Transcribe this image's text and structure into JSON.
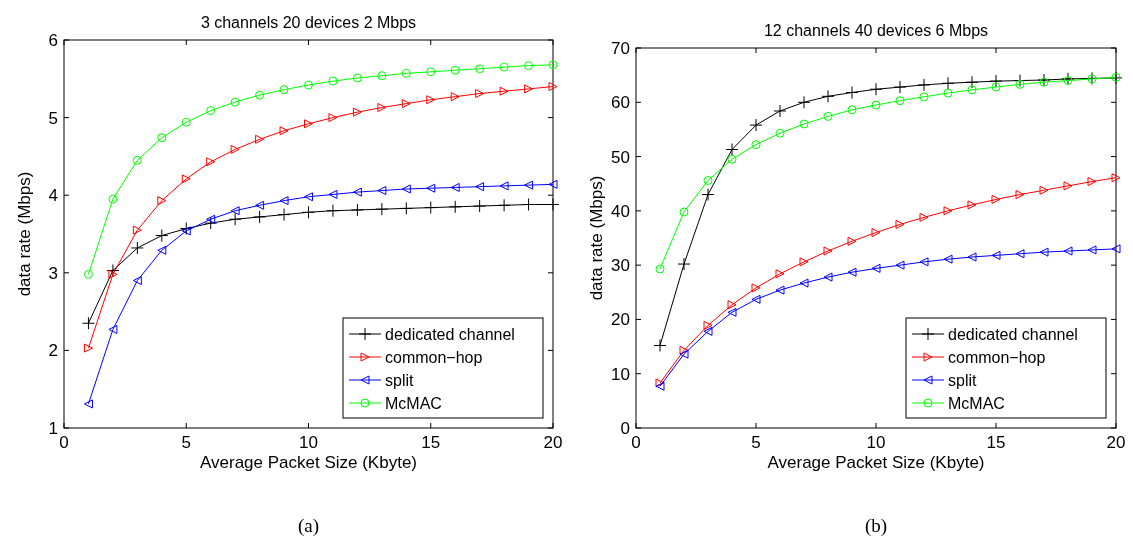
{
  "chart_data": [
    {
      "type": "line",
      "title": "3 channels 20 devices 2 Mbps",
      "xlabel": "Average Packet Size (Kbyte)",
      "ylabel": "data rate (Mbps)",
      "annotations": [
        "(a)"
      ],
      "x": [
        1,
        2,
        3,
        4,
        5,
        6,
        7,
        8,
        9,
        10,
        11,
        12,
        13,
        14,
        15,
        16,
        17,
        18,
        19,
        20
      ],
      "xlim": [
        0,
        20
      ],
      "xticks": [
        0,
        5,
        10,
        15,
        20
      ],
      "ylim": [
        1,
        6
      ],
      "yticks": [
        1,
        2,
        3,
        4,
        5,
        6
      ],
      "grid": false,
      "legend": "bottom right",
      "line_style": "solid",
      "series": [
        {
          "name": "dedicated channel",
          "color": "#000000",
          "marker": "cross",
          "values": [
            2.35,
            3.03,
            3.32,
            3.48,
            3.57,
            3.64,
            3.69,
            3.72,
            3.75,
            3.78,
            3.8,
            3.81,
            3.82,
            3.83,
            3.84,
            3.85,
            3.86,
            3.87,
            3.88,
            3.88
          ]
        },
        {
          "name": "common−hop",
          "color": "#ff0000",
          "marker": "triangle",
          "values": [
            2.03,
            2.98,
            3.55,
            3.93,
            4.21,
            4.43,
            4.59,
            4.72,
            4.83,
            4.92,
            5.0,
            5.07,
            5.13,
            5.18,
            5.23,
            5.27,
            5.31,
            5.34,
            5.37,
            5.4
          ]
        },
        {
          "name": "split",
          "color": "#0000ff",
          "marker": "triangle",
          "values": [
            1.31,
            2.27,
            2.9,
            3.29,
            3.54,
            3.69,
            3.8,
            3.87,
            3.93,
            3.98,
            4.01,
            4.04,
            4.06,
            4.08,
            4.09,
            4.1,
            4.11,
            4.12,
            4.13,
            4.14
          ]
        },
        {
          "name": "McMAC",
          "color": "#00ff00",
          "marker": "circle",
          "values": [
            2.98,
            3.95,
            4.45,
            4.74,
            4.94,
            5.09,
            5.2,
            5.29,
            5.36,
            5.42,
            5.47,
            5.51,
            5.54,
            5.57,
            5.59,
            5.61,
            5.63,
            5.65,
            5.67,
            5.68
          ]
        }
      ]
    },
    {
      "type": "line",
      "title": "12 channels 40 devices 6 Mbps",
      "xlabel": "Average Packet Size (Kbyte)",
      "ylabel": "data rate (Mbps)",
      "annotations": [
        "(b)"
      ],
      "x": [
        1,
        2,
        3,
        4,
        5,
        6,
        7,
        8,
        9,
        10,
        11,
        12,
        13,
        14,
        15,
        16,
        17,
        18,
        19,
        20
      ],
      "xlim": [
        0,
        20
      ],
      "xticks": [
        0,
        5,
        10,
        15,
        20
      ],
      "ylim": [
        0,
        70
      ],
      "yticks": [
        0,
        10,
        20,
        30,
        40,
        50,
        60,
        70
      ],
      "grid": false,
      "legend": "bottom right",
      "line_style": "solid",
      "series": [
        {
          "name": "dedicated channel",
          "color": "#000000",
          "marker": "cross",
          "values": [
            15.2,
            30.2,
            43.0,
            51.3,
            55.8,
            58.4,
            60.0,
            61.1,
            61.8,
            62.4,
            62.8,
            63.2,
            63.5,
            63.7,
            63.9,
            64.0,
            64.1,
            64.3,
            64.4,
            64.5
          ]
        },
        {
          "name": "common−hop",
          "color": "#ff0000",
          "marker": "triangle",
          "values": [
            8.3,
            14.3,
            18.9,
            22.7,
            25.8,
            28.4,
            30.6,
            32.6,
            34.4,
            36.0,
            37.5,
            38.8,
            40.0,
            41.1,
            42.1,
            43.0,
            43.8,
            44.6,
            45.4,
            46.1
          ]
        },
        {
          "name": "split",
          "color": "#0000ff",
          "marker": "triangle",
          "values": [
            7.7,
            13.6,
            17.8,
            21.3,
            23.7,
            25.4,
            26.7,
            27.8,
            28.7,
            29.4,
            30.0,
            30.6,
            31.1,
            31.5,
            31.8,
            32.1,
            32.4,
            32.6,
            32.8,
            33.0
          ]
        },
        {
          "name": "McMAC",
          "color": "#00ff00",
          "marker": "circle",
          "values": [
            29.3,
            39.8,
            45.6,
            49.5,
            52.2,
            54.3,
            56.0,
            57.4,
            58.6,
            59.5,
            60.3,
            61.0,
            61.7,
            62.3,
            62.8,
            63.3,
            63.7,
            64.0,
            64.3,
            64.6
          ]
        }
      ]
    }
  ]
}
